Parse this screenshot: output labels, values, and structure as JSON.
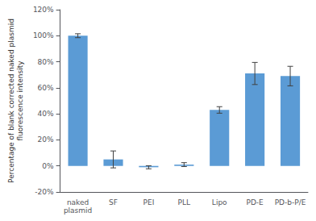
{
  "chart_data": {
    "type": "bar",
    "categories": [
      "naked\nplasmid",
      "SF",
      "PEI",
      "PLL",
      "Lipo",
      "PD-E",
      "PD-b-P/E"
    ],
    "values": [
      100,
      5,
      -1,
      1,
      43,
      71,
      69
    ],
    "errors": [
      1.5,
      6.5,
      1.2,
      1.5,
      2.5,
      8.5,
      7.5
    ],
    "color": "#5B9BD5",
    "ylabel": "Percentage of blank corrected naked plasmid\nfluorescence intensity",
    "ylim": [
      -20,
      120
    ],
    "yticks": [
      {
        "value": -20,
        "label": "-20%"
      },
      {
        "value": 0,
        "label": "0%"
      },
      {
        "value": 20,
        "label": "20%"
      },
      {
        "value": 40,
        "label": "40%"
      },
      {
        "value": 60,
        "label": "60%"
      },
      {
        "value": 80,
        "label": "80%"
      },
      {
        "value": 100,
        "label": "100%"
      },
      {
        "value": 120,
        "label": "120%"
      }
    ],
    "grid": false
  }
}
